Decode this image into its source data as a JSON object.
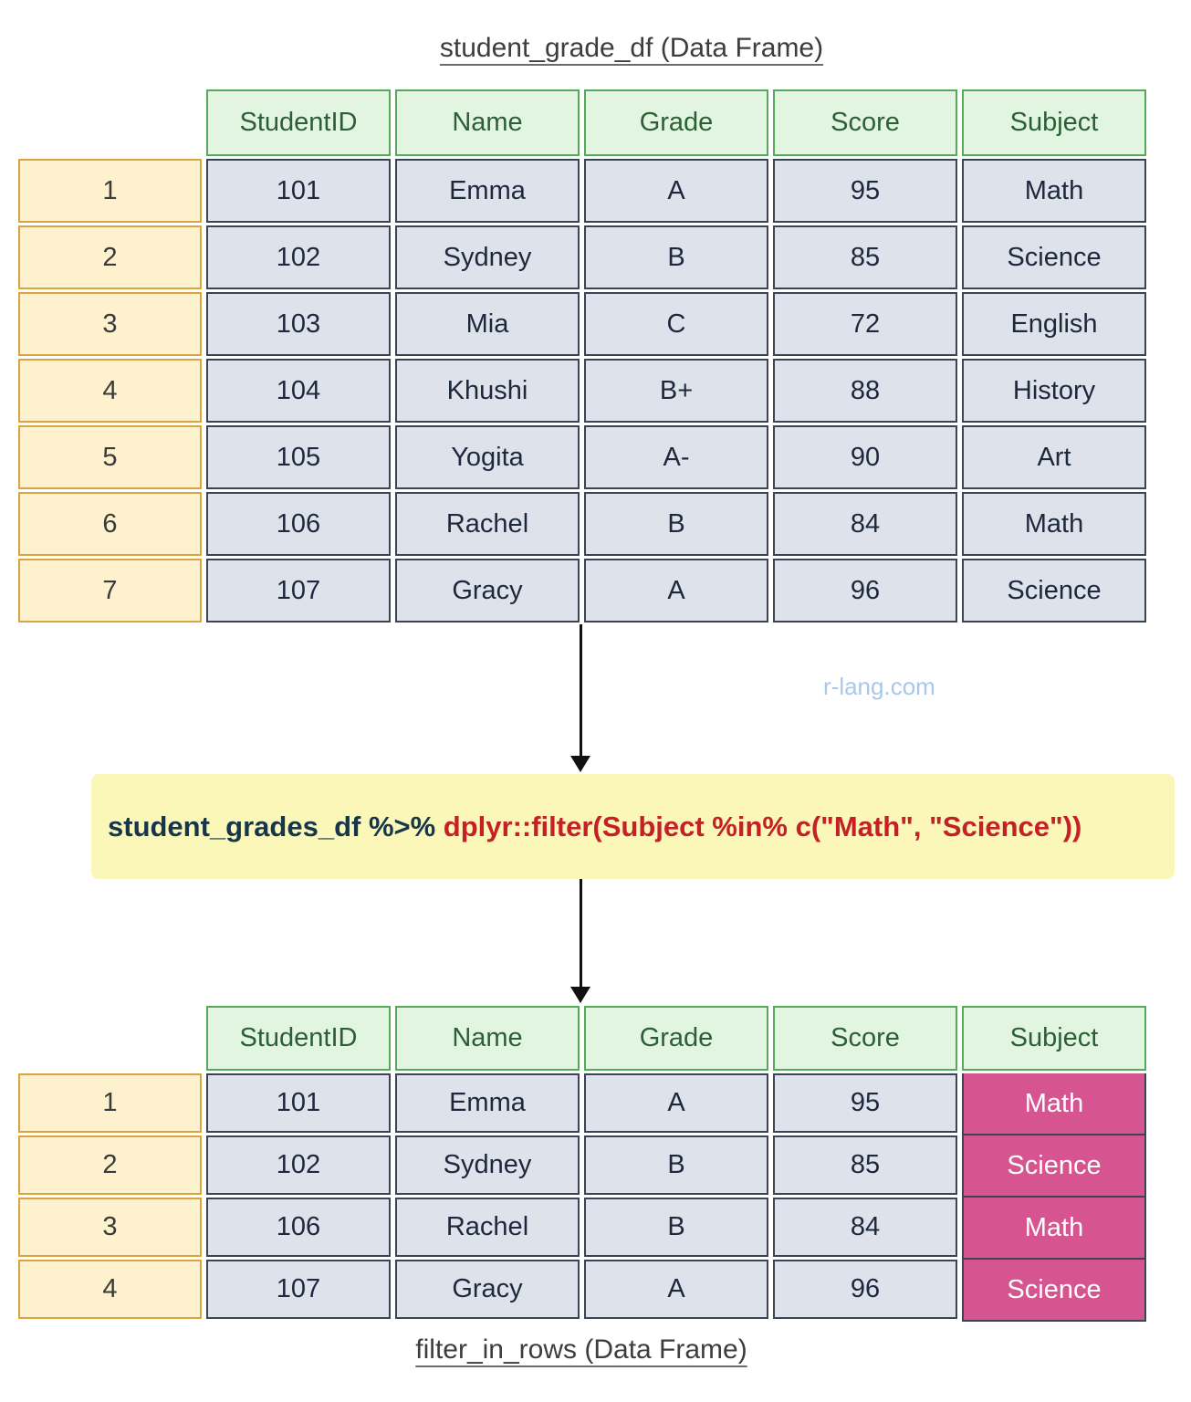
{
  "watermark": "r-lang.com",
  "code": {
    "pipeline": "student_grades_df %>% ",
    "filter_call": "dplyr::filter(Subject %in% c(\"Math\", \"Science\"))"
  },
  "dataframes": {
    "source": {
      "title": "student_grade_df (Data Frame)",
      "columns": [
        "StudentID",
        "Name",
        "Grade",
        "Score",
        "Subject"
      ],
      "rows": [
        {
          "index": "1",
          "cells": [
            "101",
            "Emma",
            "A",
            "95",
            "Math"
          ]
        },
        {
          "index": "2",
          "cells": [
            "102",
            "Sydney",
            "B",
            "85",
            "Science"
          ]
        },
        {
          "index": "3",
          "cells": [
            "103",
            "Mia",
            "C",
            "72",
            "English"
          ]
        },
        {
          "index": "4",
          "cells": [
            "104",
            "Khushi",
            "B+",
            "88",
            "History"
          ]
        },
        {
          "index": "5",
          "cells": [
            "105",
            "Yogita",
            "A-",
            "90",
            "Art"
          ]
        },
        {
          "index": "6",
          "cells": [
            "106",
            "Rachel",
            "B",
            "84",
            "Math"
          ]
        },
        {
          "index": "7",
          "cells": [
            "107",
            "Gracy",
            "A",
            "96",
            "Science"
          ]
        }
      ]
    },
    "result": {
      "title": "filter_in_rows (Data Frame)",
      "columns": [
        "StudentID",
        "Name",
        "Grade",
        "Score",
        "Subject"
      ],
      "highlight_column": "Subject",
      "rows": [
        {
          "index": "1",
          "cells": [
            "101",
            "Emma",
            "A",
            "95",
            "Math"
          ]
        },
        {
          "index": "2",
          "cells": [
            "102",
            "Sydney",
            "B",
            "85",
            "Science"
          ]
        },
        {
          "index": "3",
          "cells": [
            "106",
            "Rachel",
            "B",
            "84",
            "Math"
          ]
        },
        {
          "index": "4",
          "cells": [
            "107",
            "Gracy",
            "A",
            "96",
            "Science"
          ]
        }
      ]
    }
  },
  "colors": {
    "header_bg": "#e1f5e1",
    "header_border": "#55aa5a",
    "header_text": "#2d5f37",
    "cell_bg": "#dde2eb",
    "cell_border": "#3c4454",
    "cell_text": "#1e283c",
    "index_bg": "#fdf2cd",
    "index_border": "#dba442",
    "index_text": "#3a3a3a",
    "highlight_bg": "#d65590",
    "highlight_text": "#ffffff",
    "code_box_bg": "#faf7b9",
    "code_text": "#17364a",
    "code_accent": "#c42026",
    "watermark_text": "#a9c7e8",
    "title_text": "#3d3d3d",
    "arrow": "#111111"
  }
}
